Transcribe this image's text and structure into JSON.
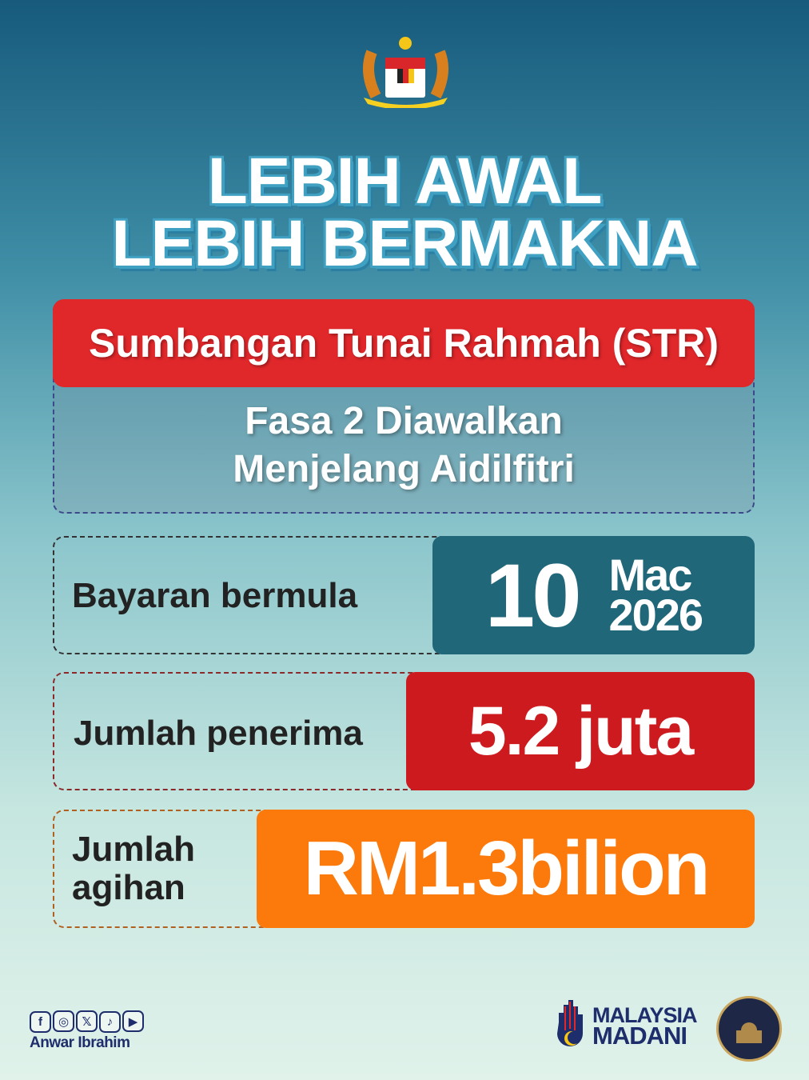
{
  "header": {
    "emblem": "malaysia-coat-of-arms",
    "title_line1": "LEBIH AWAL",
    "title_line2": "LEBIH BERMAKNA"
  },
  "banner": {
    "title": "Sumbangan Tunai Rahmah (STR)",
    "subtitle_line1": "Fasa 2 Diawalkan",
    "subtitle_line2": "Menjelang Aidilfitri"
  },
  "rows": [
    {
      "label": "Bayaran bermula",
      "day": "10",
      "month": "Mac",
      "year": "2026",
      "color": "#21677a"
    },
    {
      "label": "Jumlah penerima",
      "value": "5.2 juta",
      "color": "#cc1a1e"
    },
    {
      "label_line1": "Jumlah",
      "label_line2": "agihan",
      "value": "RM1.3bilion",
      "color": "#fb7a0b"
    }
  ],
  "footer": {
    "social_icons": [
      "facebook-icon",
      "instagram-icon",
      "x-icon",
      "tiktok-icon",
      "youtube-icon"
    ],
    "name": "Anwar Ibrahim",
    "madani_line1": "MALAYSIA",
    "madani_line2": "MADANI",
    "seal": "pejabat-perdana-menteri-seal"
  },
  "colors": {
    "red_banner": "#e0272a",
    "navy": "#1e2d6b"
  }
}
